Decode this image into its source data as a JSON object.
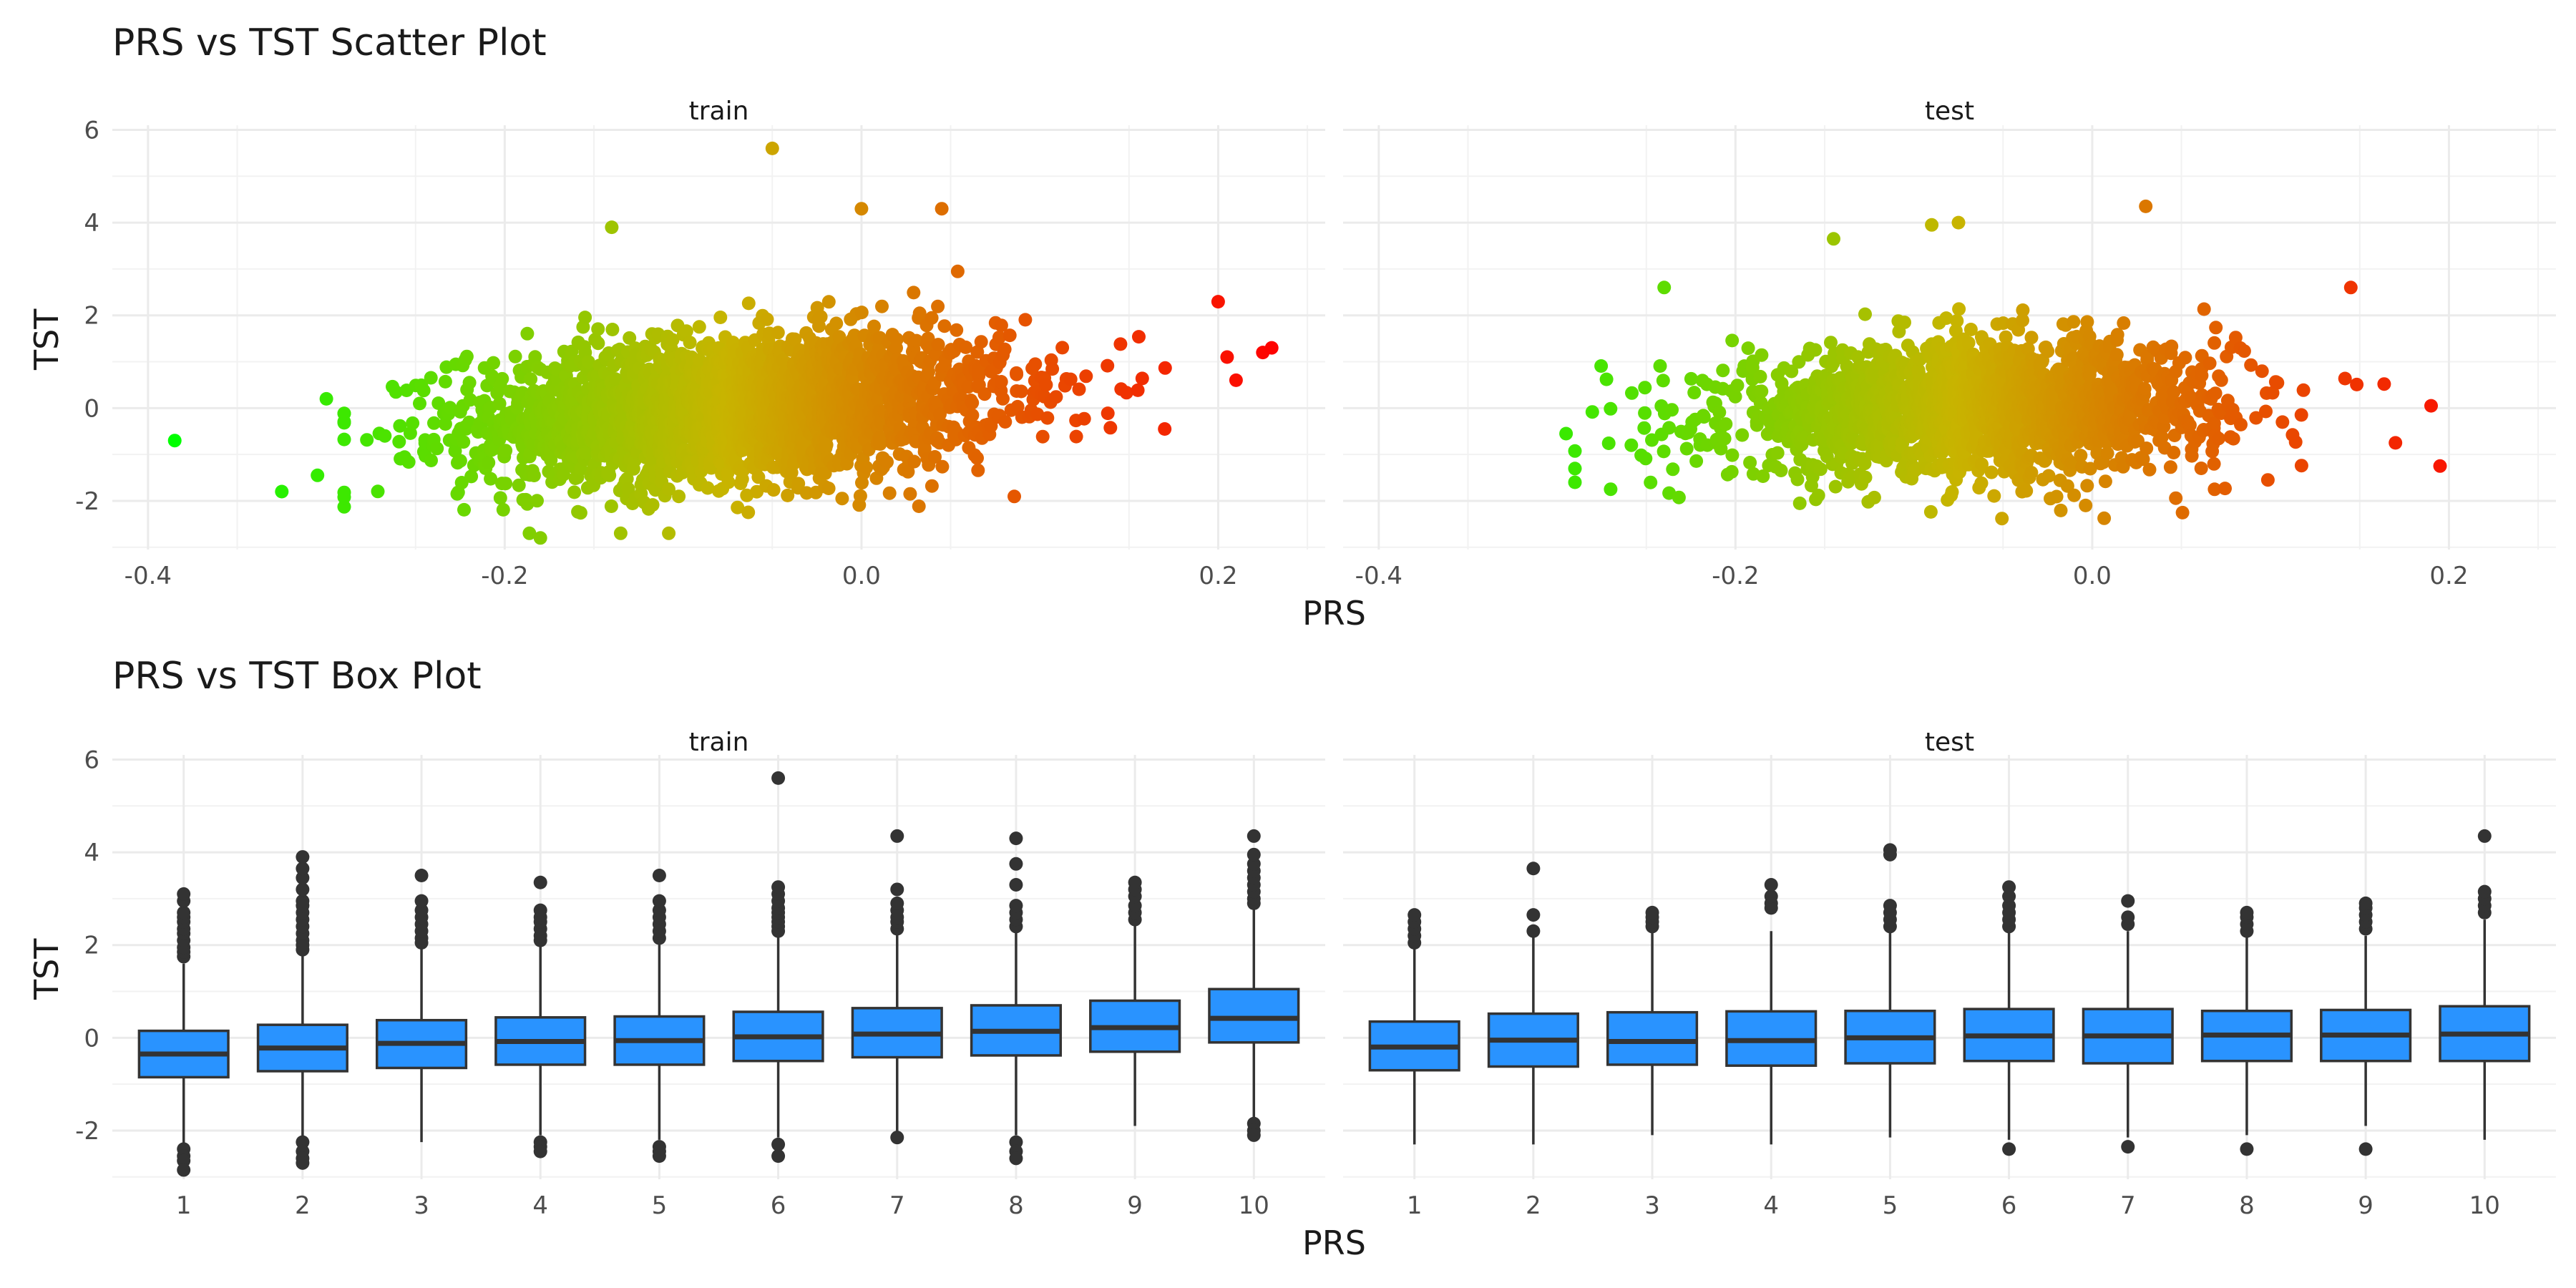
{
  "chart_data": [
    {
      "type": "scatter",
      "title": "PRS vs TST Scatter Plot",
      "xlabel": "PRS",
      "ylabel": "TST",
      "facets": [
        "train",
        "test"
      ],
      "xlim": [
        -0.42,
        0.26
      ],
      "ylim": [
        -3.05,
        6.1
      ],
      "x_ticks": [
        -0.4,
        -0.2,
        0.0,
        0.2
      ],
      "x_tick_labels": [
        "-0.4",
        "-0.2",
        "0.0",
        "0.2"
      ],
      "y_ticks": [
        -2,
        0,
        2,
        4,
        6
      ],
      "y_tick_labels": [
        "-2",
        "0",
        "2",
        "4",
        "6"
      ],
      "grid": true,
      "color_scale": {
        "low": "#00ff00",
        "mid": "#c8b400",
        "high": "#ff0000"
      },
      "distributions": {
        "train": {
          "x_center": -0.07,
          "x_sd": 0.075,
          "y_center": 0.0,
          "y_slope": 2.2,
          "y_sd": 0.78,
          "n": 2600
        },
        "test": {
          "x_center": -0.065,
          "x_sd": 0.07,
          "y_center": 0.0,
          "y_slope": 1.2,
          "y_sd": 0.7,
          "n": 1900
        }
      },
      "notable_points": {
        "train": [
          [
            -0.385,
            -0.7
          ],
          [
            -0.325,
            -1.8
          ],
          [
            -0.305,
            -1.45
          ],
          [
            -0.3,
            0.2
          ],
          [
            -0.05,
            5.6
          ],
          [
            -0.14,
            3.9
          ],
          [
            0.045,
            4.3
          ],
          [
            -0.0,
            4.3
          ],
          [
            0.225,
            1.2
          ],
          [
            0.23,
            1.3
          ],
          [
            0.21,
            0.6
          ],
          [
            0.205,
            1.1
          ],
          [
            0.17,
            -0.45
          ],
          [
            -0.18,
            -2.8
          ],
          [
            -0.135,
            -2.7
          ]
        ],
        "test": [
          [
            -0.295,
            -0.55
          ],
          [
            -0.29,
            -1.6
          ],
          [
            -0.27,
            -1.75
          ],
          [
            0.195,
            -1.25
          ],
          [
            0.19,
            0.05
          ],
          [
            0.17,
            -0.75
          ],
          [
            0.03,
            4.35
          ],
          [
            -0.145,
            3.65
          ],
          [
            -0.09,
            3.95
          ],
          [
            -0.075,
            4.0
          ],
          [
            -0.24,
            2.6
          ],
          [
            0.145,
            2.6
          ]
        ]
      }
    },
    {
      "type": "box",
      "title": "PRS vs TST Box Plot",
      "xlabel": "PRS",
      "ylabel": "TST",
      "facets": [
        "train",
        "test"
      ],
      "categories": [
        "1",
        "2",
        "3",
        "4",
        "5",
        "6",
        "7",
        "8",
        "9",
        "10"
      ],
      "ylim": [
        -3.05,
        6.1
      ],
      "y_ticks": [
        -2,
        0,
        2,
        4,
        6
      ],
      "y_tick_labels": [
        "-2",
        "0",
        "2",
        "4",
        "6"
      ],
      "grid": true,
      "box_color": "#2993ff",
      "boxes": {
        "train": [
          {
            "q1": -0.85,
            "median": -0.35,
            "q3": 0.15,
            "lo": -2.3,
            "hi": 1.6,
            "outliers": [
              1.75,
              1.85,
              1.95,
              2.1,
              2.25,
              2.35,
              2.5,
              2.6,
              2.7,
              2.95,
              3.1,
              -2.4,
              -2.55,
              -2.65,
              -2.85
            ]
          },
          {
            "q1": -0.72,
            "median": -0.22,
            "q3": 0.28,
            "lo": -2.15,
            "hi": 1.8,
            "outliers": [
              1.9,
              2.0,
              2.1,
              2.25,
              2.4,
              2.55,
              2.7,
              2.85,
              2.95,
              3.2,
              3.45,
              3.65,
              3.9,
              -2.25,
              -2.45,
              -2.6,
              -2.7
            ]
          },
          {
            "q1": -0.65,
            "median": -0.12,
            "q3": 0.38,
            "lo": -2.25,
            "hi": 1.95,
            "outliers": [
              2.05,
              2.15,
              2.3,
              2.45,
              2.6,
              2.75,
              2.95,
              3.5
            ]
          },
          {
            "q1": -0.58,
            "median": -0.08,
            "q3": 0.44,
            "lo": -2.1,
            "hi": 2.0,
            "outliers": [
              2.1,
              2.2,
              2.35,
              2.5,
              2.6,
              2.75,
              3.35,
              -2.25,
              -2.35,
              -2.45
            ]
          },
          {
            "q1": -0.58,
            "median": -0.06,
            "q3": 0.46,
            "lo": -2.2,
            "hi": 2.05,
            "outliers": [
              2.15,
              2.3,
              2.45,
              2.6,
              2.75,
              2.95,
              3.5,
              -2.35,
              -2.45,
              -2.55
            ]
          },
          {
            "q1": -0.5,
            "median": 0.02,
            "q3": 0.56,
            "lo": -2.15,
            "hi": 2.2,
            "outliers": [
              2.3,
              2.4,
              2.5,
              2.6,
              2.7,
              2.8,
              2.95,
              3.1,
              3.25,
              5.6,
              -2.3,
              -2.55
            ]
          },
          {
            "q1": -0.42,
            "median": 0.08,
            "q3": 0.64,
            "lo": -2.05,
            "hi": 2.25,
            "outliers": [
              2.35,
              2.5,
              2.6,
              2.75,
              2.9,
              3.2,
              4.35,
              -2.15
            ]
          },
          {
            "q1": -0.38,
            "median": 0.14,
            "q3": 0.7,
            "lo": -2.1,
            "hi": 2.3,
            "outliers": [
              2.4,
              2.55,
              2.7,
              2.85,
              3.3,
              3.75,
              4.3,
              -2.25,
              -2.45,
              -2.6
            ]
          },
          {
            "q1": -0.3,
            "median": 0.22,
            "q3": 0.8,
            "lo": -1.9,
            "hi": 2.45,
            "outliers": [
              2.55,
              2.7,
              2.85,
              3.05,
              3.2,
              3.35
            ]
          },
          {
            "q1": -0.1,
            "median": 0.42,
            "q3": 1.05,
            "lo": -1.75,
            "hi": 2.8,
            "outliers": [
              2.9,
              3.0,
              3.15,
              3.3,
              3.45,
              3.6,
              3.75,
              3.95,
              4.35,
              -1.85,
              -2.0,
              -2.1
            ]
          }
        ],
        "test": [
          {
            "q1": -0.7,
            "median": -0.2,
            "q3": 0.35,
            "lo": -2.3,
            "hi": 1.95,
            "outliers": [
              2.05,
              2.2,
              2.35,
              2.5,
              2.65
            ]
          },
          {
            "q1": -0.62,
            "median": -0.05,
            "q3": 0.52,
            "lo": -2.3,
            "hi": 2.2,
            "outliers": [
              2.3,
              2.65,
              3.65
            ]
          },
          {
            "q1": -0.58,
            "median": -0.08,
            "q3": 0.55,
            "lo": -2.1,
            "hi": 2.3,
            "outliers": [
              2.4,
              2.5,
              2.6,
              2.7
            ]
          },
          {
            "q1": -0.6,
            "median": -0.06,
            "q3": 0.57,
            "lo": -2.3,
            "hi": 2.3,
            "outliers": [
              2.8,
              2.9,
              3.05,
              3.3
            ]
          },
          {
            "q1": -0.55,
            "median": 0.0,
            "q3": 0.58,
            "lo": -2.15,
            "hi": 2.3,
            "outliers": [
              2.4,
              2.55,
              2.7,
              2.85,
              3.95,
              4.05
            ]
          },
          {
            "q1": -0.5,
            "median": 0.04,
            "q3": 0.62,
            "lo": -2.2,
            "hi": 2.3,
            "outliers": [
              2.4,
              2.55,
              2.7,
              2.85,
              3.05,
              3.25,
              -2.4
            ]
          },
          {
            "q1": -0.55,
            "median": 0.04,
            "q3": 0.62,
            "lo": -2.15,
            "hi": 2.3,
            "outliers": [
              2.45,
              2.6,
              2.95,
              -2.35
            ]
          },
          {
            "q1": -0.5,
            "median": 0.06,
            "q3": 0.58,
            "lo": -2.1,
            "hi": 2.2,
            "outliers": [
              2.3,
              2.45,
              2.6,
              2.7,
              -2.4
            ]
          },
          {
            "q1": -0.5,
            "median": 0.06,
            "q3": 0.6,
            "lo": -1.9,
            "hi": 2.2,
            "outliers": [
              2.35,
              2.5,
              2.65,
              2.8,
              2.9,
              -2.4
            ]
          },
          {
            "q1": -0.5,
            "median": 0.08,
            "q3": 0.68,
            "lo": -2.2,
            "hi": 2.55,
            "outliers": [
              2.7,
              2.85,
              3.0,
              3.15,
              4.35
            ]
          }
        ]
      }
    }
  ]
}
